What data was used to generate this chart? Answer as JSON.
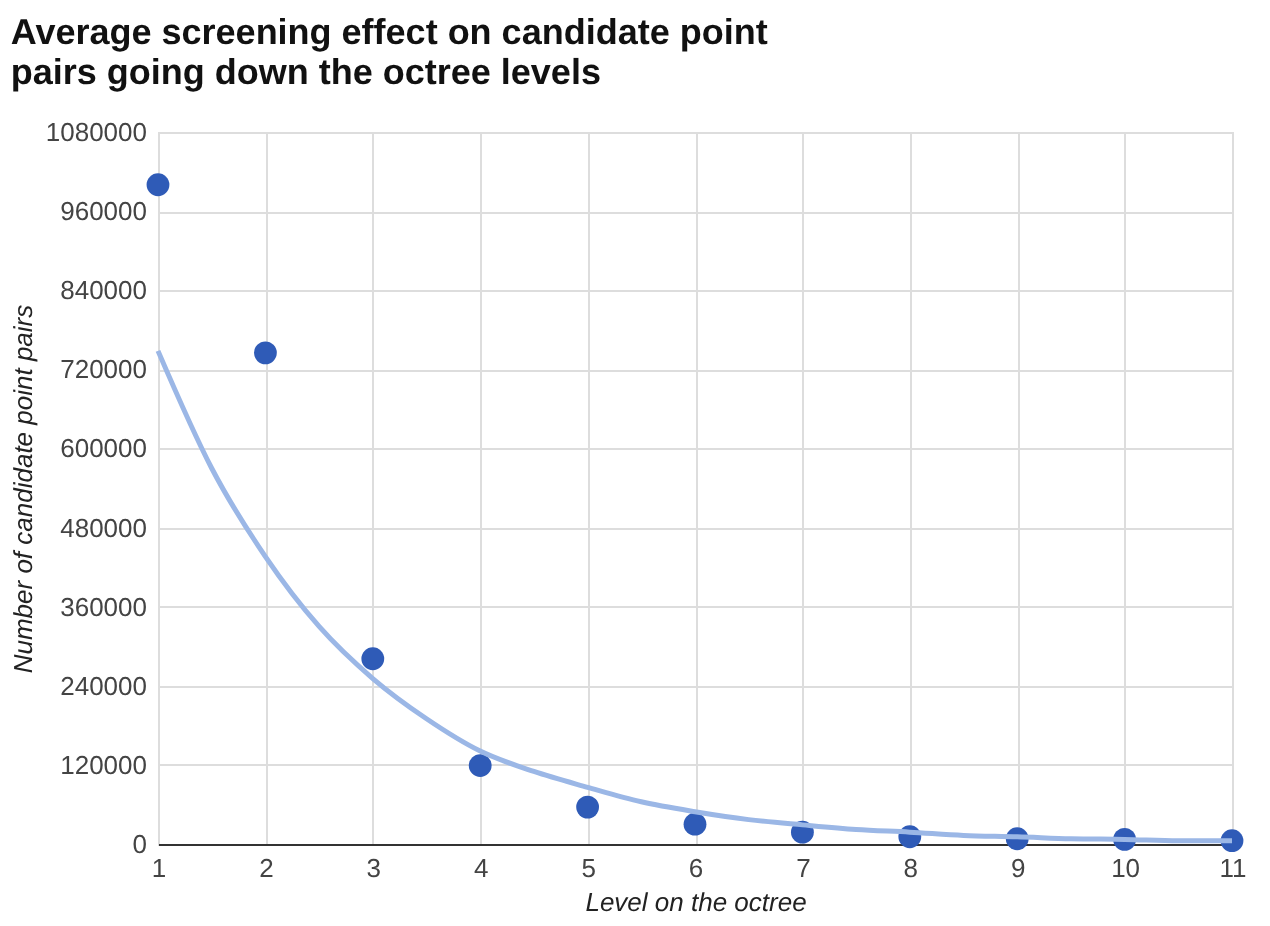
{
  "chart_data": {
    "type": "scatter",
    "title": "Average screening effect on candidate point pairs going down the octree levels",
    "xlabel": "Level on the octree",
    "ylabel": "Number of candidate point pairs",
    "x": [
      1,
      2,
      3,
      4,
      5,
      6,
      7,
      8,
      9,
      10,
      11
    ],
    "series": [
      {
        "color": "#2f5bb7",
        "marker": "circle",
        "values": [
          1000000,
          745000,
          281000,
          119000,
          56000,
          30000,
          18000,
          11000,
          8000,
          7000,
          5000
        ]
      },
      {
        "type": "line",
        "color": "#9bb7e6",
        "line_style": "solid",
        "x": [
          1,
          1.5,
          2,
          2.5,
          3,
          3.5,
          4,
          4.5,
          5,
          5.5,
          6,
          6.5,
          7,
          7.5,
          8,
          8.5,
          9,
          9.5,
          10,
          10.5,
          11
        ],
        "values": [
          748000,
          570000,
          436000,
          330000,
          251000,
          190000,
          141000,
          110000,
          86000,
          64000,
          49000,
          37000,
          29000,
          22000,
          18000,
          13000,
          11000,
          8000,
          7000,
          5000,
          5000
        ]
      }
    ],
    "xlim": [
      1,
      11
    ],
    "xticks": [
      1,
      2,
      3,
      4,
      5,
      6,
      7,
      8,
      9,
      10,
      11
    ],
    "ylim": [
      0,
      1080000
    ],
    "yticks": [
      0,
      120000,
      240000,
      360000,
      480000,
      600000,
      720000,
      840000,
      960000,
      1080000
    ],
    "grid": true
  }
}
